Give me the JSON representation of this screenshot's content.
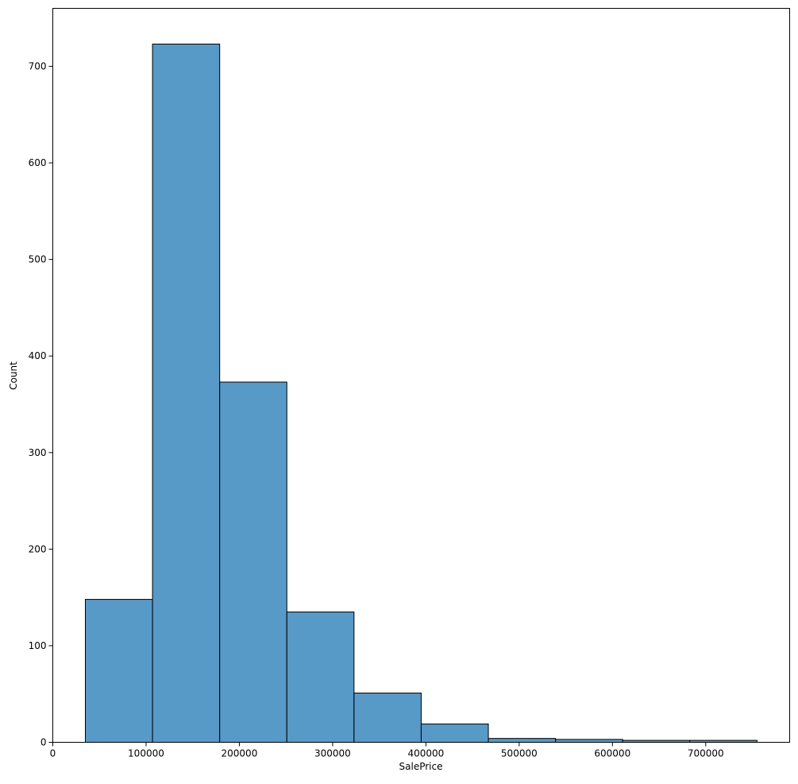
{
  "chart_data": {
    "type": "bar",
    "title": "",
    "xlabel": "SalePrice",
    "ylabel": "Count",
    "xlim": [
      0,
      790000
    ],
    "ylim": [
      0,
      760
    ],
    "x_ticks": [
      0,
      100000,
      200000,
      300000,
      400000,
      500000,
      600000,
      700000
    ],
    "x_tick_labels": [
      "0",
      "100000",
      "200000",
      "300000",
      "400000",
      "500000",
      "600000",
      "700000"
    ],
    "y_ticks": [
      0,
      100,
      200,
      300,
      400,
      500,
      600,
      700
    ],
    "y_tick_labels": [
      "0",
      "100",
      "200",
      "300",
      "400",
      "500",
      "600",
      "700"
    ],
    "bins": [
      {
        "start": 34900,
        "end": 106910,
        "count": 148
      },
      {
        "start": 106910,
        "end": 178920,
        "count": 723
      },
      {
        "start": 178920,
        "end": 250930,
        "count": 373
      },
      {
        "start": 250930,
        "end": 322940,
        "count": 135
      },
      {
        "start": 322940,
        "end": 394950,
        "count": 51
      },
      {
        "start": 394950,
        "end": 466960,
        "count": 19
      },
      {
        "start": 466960,
        "end": 538970,
        "count": 4
      },
      {
        "start": 538970,
        "end": 610980,
        "count": 3
      },
      {
        "start": 610980,
        "end": 682990,
        "count": 2
      },
      {
        "start": 682990,
        "end": 755000,
        "count": 2
      }
    ],
    "grid": false,
    "legend": "none",
    "colors": {
      "bar_fill": "#5799c7",
      "bar_edge": "#000000",
      "axis": "#000000"
    }
  }
}
